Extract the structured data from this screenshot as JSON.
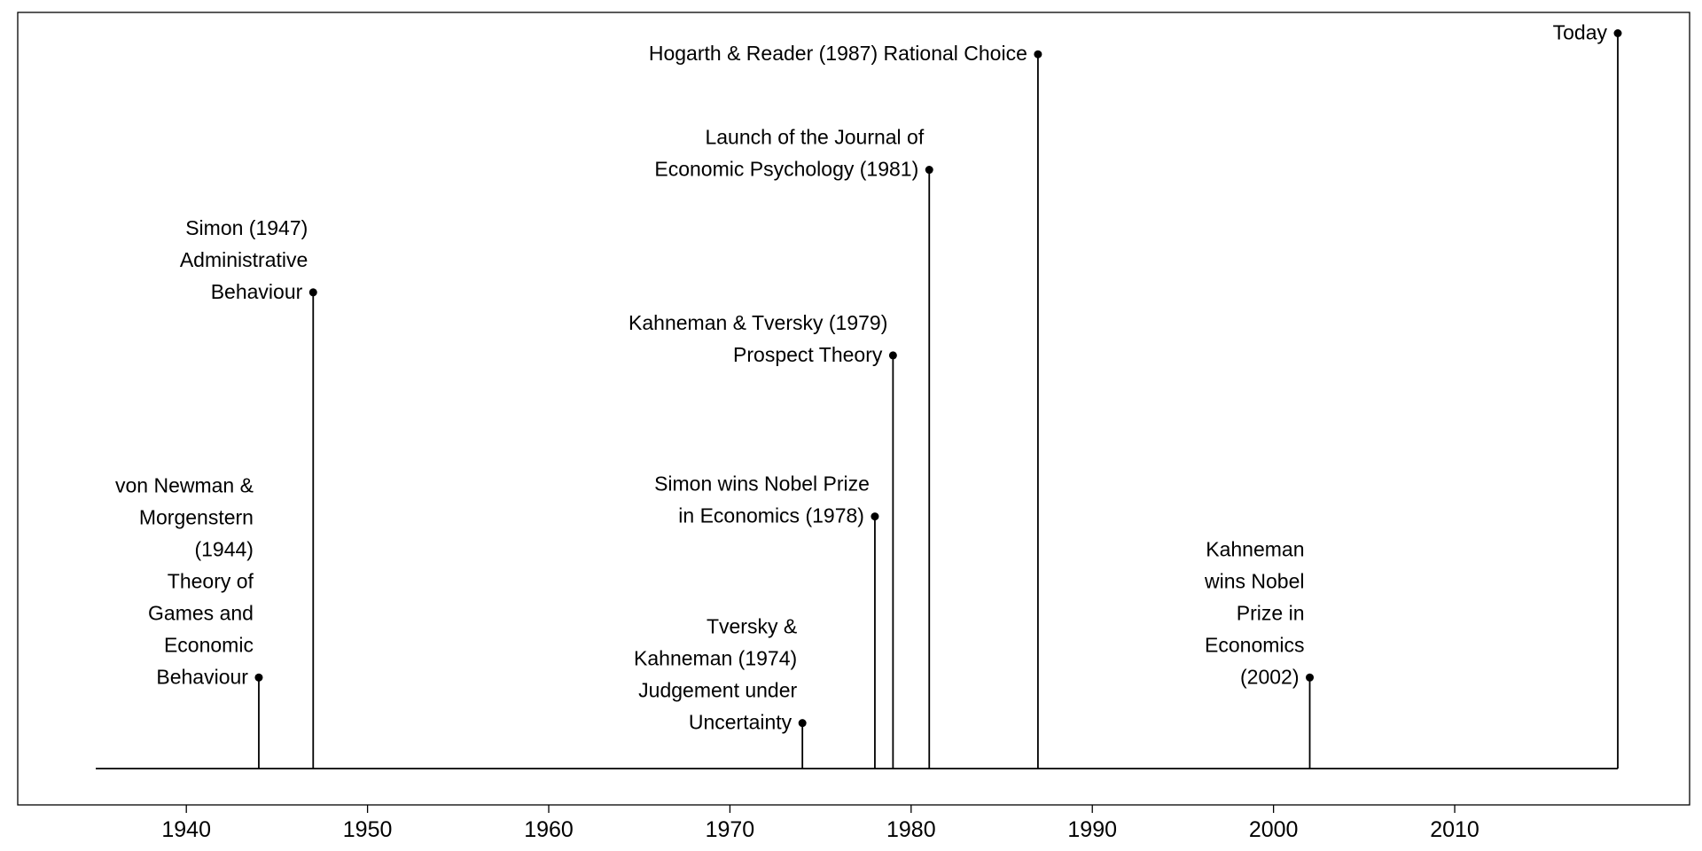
{
  "chart_data": {
    "type": "timeline",
    "title": "",
    "xlabel": "",
    "ylabel": "",
    "xlim": [
      1930,
      2023
    ],
    "x_ticks": [
      1940,
      1950,
      1960,
      1970,
      1980,
      1990,
      2000,
      2010
    ],
    "grid": false,
    "baseline": [
      1935,
      2019
    ],
    "events": [
      {
        "x": 1944,
        "height": 0.13,
        "label": [
          "von Newman &",
          "Morgenstern",
          "(1944)",
          "Theory of",
          "Games and",
          "Economic",
          "Behaviour"
        ]
      },
      {
        "x": 1947,
        "height": 0.68,
        "label": [
          "Simon (1947)",
          "Administrative",
          "Behaviour"
        ]
      },
      {
        "x": 1974,
        "height": 0.065,
        "label": [
          "Tversky &",
          "Kahneman (1974)",
          "Judgement under",
          "Uncertainty"
        ]
      },
      {
        "x": 1978,
        "height": 0.36,
        "label": [
          "Simon wins Nobel Prize",
          "in Economics (1978)"
        ]
      },
      {
        "x": 1979,
        "height": 0.59,
        "label": [
          "Kahneman & Tversky (1979)",
          "Prospect Theory"
        ]
      },
      {
        "x": 1981,
        "height": 0.855,
        "label": [
          "Launch of the Journal of",
          "Economic Psychology (1981)"
        ]
      },
      {
        "x": 1987,
        "height": 1.02,
        "label": [
          "Hogarth & Reader (1987) Rational Choice"
        ]
      },
      {
        "x": 2002,
        "height": 0.13,
        "label": [
          "Kahneman",
          "wins Nobel",
          "Prize in",
          "Economics",
          "(2002)"
        ]
      },
      {
        "x": 2019,
        "height": 1.05,
        "label": [
          "Today"
        ]
      }
    ]
  }
}
